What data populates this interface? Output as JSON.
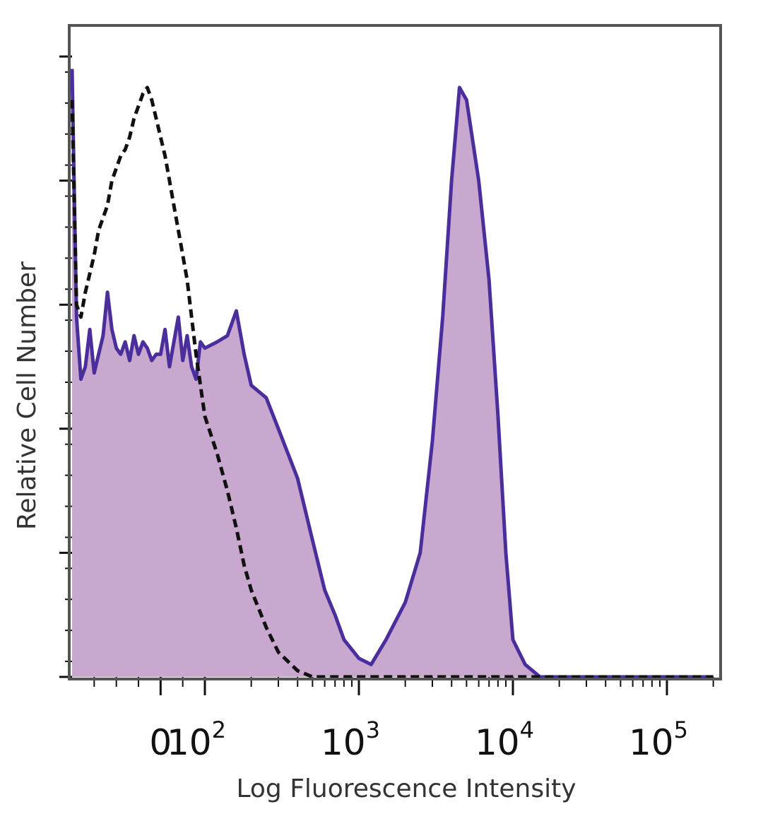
{
  "chart_data": {
    "type": "area",
    "title": "",
    "xlabel": "Log Fluorescence Intensity",
    "ylabel": "Relative Cell Number",
    "x_scale": "biexponential",
    "x_tick_labels": [
      {
        "label": "0",
        "value": 0
      },
      {
        "label": "10",
        "exp": "2",
        "value": 100
      },
      {
        "label": "10",
        "exp": "3",
        "value": 1000
      },
      {
        "label": "10",
        "exp": "4",
        "value": 10000
      },
      {
        "label": "10",
        "exp": "5",
        "value": 100000
      }
    ],
    "ylim": [
      0,
      100
    ],
    "grid": false,
    "legend": "none",
    "series": [
      {
        "style": "filled-solid",
        "fill_color": "#c9a8cf",
        "line_color": "#4a2f9c",
        "x": [
          -200,
          -190,
          -180,
          -170,
          -160,
          -150,
          -140,
          -130,
          -120,
          -110,
          -100,
          -90,
          -80,
          -70,
          -60,
          -50,
          -40,
          -30,
          -20,
          -10,
          0,
          10,
          20,
          30,
          40,
          50,
          60,
          70,
          80,
          90,
          100,
          120,
          140,
          160,
          180,
          200,
          250,
          300,
          400,
          500,
          600,
          700,
          800,
          1000,
          1200,
          1500,
          2000,
          2500,
          3000,
          3500,
          4000,
          4500,
          5000,
          6000,
          7000,
          8000,
          9000,
          10000,
          12000,
          15000,
          20000,
          50000,
          100000,
          200000
        ],
        "y": [
          98,
          58,
          48,
          50,
          56,
          49,
          52,
          55,
          62,
          56,
          53,
          52,
          54,
          51,
          55,
          52,
          54,
          53,
          51,
          52,
          52,
          56,
          50,
          54,
          58,
          51,
          55,
          50,
          48,
          54,
          53,
          54,
          55,
          59,
          52,
          47,
          45,
          40,
          32,
          22,
          14,
          10,
          6,
          3,
          2,
          6,
          12,
          20,
          38,
          58,
          80,
          95,
          93,
          80,
          64,
          42,
          20,
          6,
          2,
          0,
          0,
          0,
          0,
          0
        ]
      },
      {
        "style": "dashed",
        "line_color": "#111111",
        "x": [
          -200,
          -190,
          -180,
          -170,
          -160,
          -150,
          -140,
          -130,
          -120,
          -110,
          -100,
          -90,
          -80,
          -70,
          -60,
          -50,
          -40,
          -30,
          -20,
          -10,
          0,
          10,
          20,
          30,
          40,
          50,
          60,
          70,
          80,
          90,
          100,
          120,
          140,
          160,
          180,
          200,
          250,
          300,
          400,
          500,
          600,
          700,
          800,
          1000,
          1500,
          2000,
          5000,
          100000,
          200000
        ],
        "y": [
          93,
          60,
          58,
          62,
          65,
          68,
          72,
          74,
          76,
          80,
          82,
          84,
          85,
          87,
          90,
          92,
          94,
          95,
          93,
          90,
          87,
          84,
          80,
          76,
          72,
          68,
          64,
          58,
          52,
          47,
          42,
          36,
          30,
          24,
          18,
          14,
          8,
          4,
          1,
          0,
          0,
          0,
          0,
          0,
          0,
          0,
          0,
          0,
          0
        ]
      }
    ]
  }
}
